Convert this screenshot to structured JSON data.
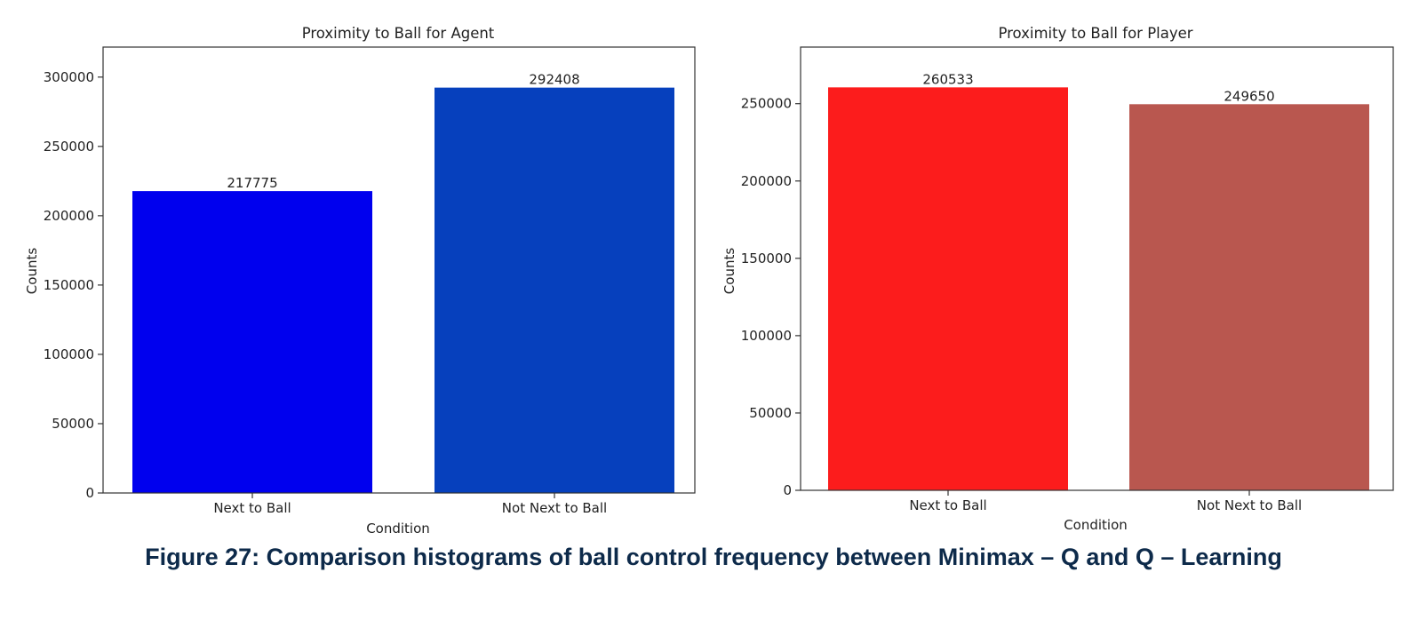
{
  "figure_caption": "Figure 27: Comparison histograms of ball control frequency between Minimax – Q and Q – Learning",
  "chart_data": [
    {
      "type": "bar",
      "title": "Proximity to Ball for Agent",
      "xlabel": "Condition",
      "ylabel": "Counts",
      "categories": [
        "Next to Ball",
        "Not Next to Ball"
      ],
      "values": [
        217775,
        292408
      ],
      "bar_colors": [
        "#0000ee",
        "#0640bd"
      ],
      "ylim": [
        0,
        321649
      ],
      "yticks": [
        0,
        50000,
        100000,
        150000,
        200000,
        250000,
        300000
      ],
      "data_labels": [
        "217775",
        "292408"
      ],
      "grid": false
    },
    {
      "type": "bar",
      "title": "Proximity to Ball for Player",
      "xlabel": "Condition",
      "ylabel": "Counts",
      "categories": [
        "Next to Ball",
        "Not Next to Ball"
      ],
      "values": [
        260533,
        249650
      ],
      "bar_colors": [
        "#fc1c1c",
        "#b9574f"
      ],
      "ylim": [
        0,
        286586
      ],
      "yticks": [
        0,
        50000,
        100000,
        150000,
        200000,
        250000
      ],
      "data_labels": [
        "260533",
        "249650"
      ],
      "grid": false
    }
  ]
}
